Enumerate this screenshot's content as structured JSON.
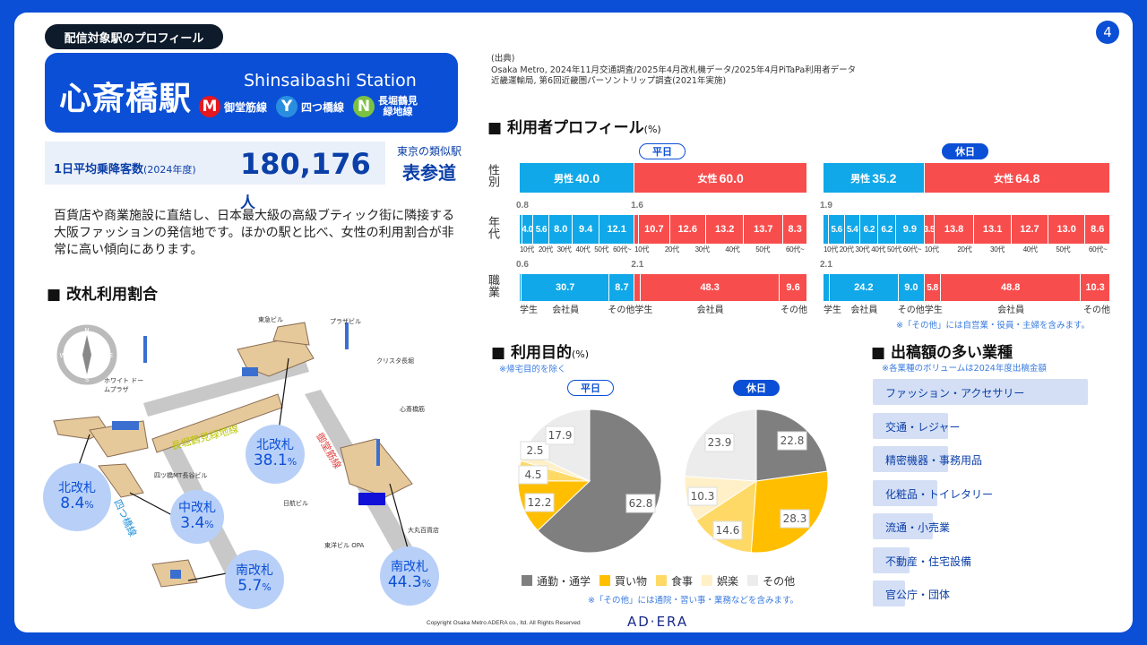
{
  "header": {
    "section_pill": "配信対象駅のプロフィール",
    "page_number": "4"
  },
  "station": {
    "name_ja": "心斎橋駅",
    "name_en": "Shinsaibashi Station",
    "lines": [
      {
        "letter": "M",
        "name": "御堂筋線",
        "color": "#e5171f"
      },
      {
        "letter": "Y",
        "name": "四つ橋線",
        "color": "#2a8ee0"
      },
      {
        "letter": "N",
        "name": "長堀鶴見緑地線",
        "color": "#7cc242"
      }
    ]
  },
  "ridership": {
    "label": "1日平均乗降客数",
    "year": "(2024年度)",
    "value": "180,176",
    "unit": "人"
  },
  "similar": {
    "label": "東京の類似駅",
    "station": "表参道"
  },
  "description": "百貨店や商業施設に直結し、日本最大級の高級ブティック街に隣接する大阪ファッションの発信地です。ほかの駅と比べ、女性の利用割合が非常に高い傾向にあります。",
  "gate_section": {
    "title": "改札利用割合",
    "gates": [
      {
        "name": "北改札",
        "value": "8.4",
        "unit": "%"
      },
      {
        "name": "中改札",
        "value": "3.4",
        "unit": "%"
      },
      {
        "name": "南改札",
        "value": "5.7",
        "unit": "%"
      },
      {
        "name": "北改札",
        "value": "38.1",
        "unit": "%"
      },
      {
        "name": "南改札",
        "value": "44.3",
        "unit": "%"
      }
    ],
    "map_labels": [
      "東急ビル",
      "プラザビル",
      "クリスタ長堀",
      "心斎橋筋",
      "ホワイト ドームプラザ",
      "四ツ橋MT長谷ビル",
      "日航ビル",
      "東洋ビル OPA",
      "大丸百貨店",
      "長堀鶴見緑地線",
      "御堂筋線",
      "四つ橋線"
    ],
    "compass": [
      "N",
      "E",
      "S",
      "W"
    ]
  },
  "source": {
    "title": "(出典)",
    "lines": [
      "Osaka Metro, 2024年11月交通調査/2025年4月改札機データ/2025年4月PiTaPa利用者データ",
      "近畿運輸局, 第6回近畿圏パーソントリップ調査(2021年実施)"
    ]
  },
  "profile": {
    "title": "利用者プロフィール",
    "unit": "(%)",
    "weekday_tag": "平日",
    "holiday_tag": "休日",
    "row_labels": {
      "gender": "性別",
      "age": "年代",
      "job": "職業"
    },
    "note": "※「その他」には自営業・役員・主婦を含みます。",
    "colors": {
      "male": "#10a8e8",
      "female": "#f84d4d"
    },
    "weekday": {
      "gender": [
        {
          "label": "男性",
          "value": 40.0,
          "sex": "male"
        },
        {
          "label": "女性",
          "value": 60.0,
          "sex": "female"
        }
      ],
      "age": [
        {
          "label": "10代",
          "value": 0.8,
          "sex": "male"
        },
        {
          "label": "20代",
          "value": 4.0,
          "sex": "male"
        },
        {
          "label": "30代",
          "value": 5.6,
          "sex": "male"
        },
        {
          "label": "40代",
          "value": 8.0,
          "sex": "male"
        },
        {
          "label": "50代",
          "value": 9.4,
          "sex": "male"
        },
        {
          "label": "60代~",
          "value": 12.1,
          "sex": "male"
        },
        {
          "label": "10代",
          "value": 1.6,
          "sex": "female"
        },
        {
          "label": "20代",
          "value": 10.7,
          "sex": "female"
        },
        {
          "label": "30代",
          "value": 12.6,
          "sex": "female"
        },
        {
          "label": "40代",
          "value": 13.2,
          "sex": "female"
        },
        {
          "label": "50代",
          "value": 13.7,
          "sex": "female"
        },
        {
          "label": "60代~",
          "value": 8.3,
          "sex": "female"
        }
      ],
      "job": [
        {
          "label": "学生",
          "value": 0.6,
          "sex": "male"
        },
        {
          "label": "会社員",
          "value": 30.7,
          "sex": "male"
        },
        {
          "label": "その他",
          "value": 8.7,
          "sex": "male"
        },
        {
          "label": "学生",
          "value": 2.1,
          "sex": "female"
        },
        {
          "label": "会社員",
          "value": 48.3,
          "sex": "female"
        },
        {
          "label": "その他",
          "value": 9.6,
          "sex": "female"
        }
      ]
    },
    "holiday": {
      "gender": [
        {
          "label": "男性",
          "value": 35.2,
          "sex": "male"
        },
        {
          "label": "女性",
          "value": 64.8,
          "sex": "female"
        }
      ],
      "age": [
        {
          "label": "10代",
          "value": 1.9,
          "sex": "male"
        },
        {
          "label": "20代",
          "value": 5.6,
          "sex": "male"
        },
        {
          "label": "30代",
          "value": 5.4,
          "sex": "male"
        },
        {
          "label": "40代",
          "value": 6.2,
          "sex": "male"
        },
        {
          "label": "50代",
          "value": 6.2,
          "sex": "male"
        },
        {
          "label": "60代~",
          "value": 9.9,
          "sex": "male"
        },
        {
          "label": "10代",
          "value": 3.5,
          "sex": "female"
        },
        {
          "label": "20代",
          "value": 13.8,
          "sex": "female"
        },
        {
          "label": "30代",
          "value": 13.1,
          "sex": "female"
        },
        {
          "label": "40代",
          "value": 12.7,
          "sex": "female"
        },
        {
          "label": "50代",
          "value": 13.0,
          "sex": "female"
        },
        {
          "label": "60代~",
          "value": 8.6,
          "sex": "female"
        }
      ],
      "job": [
        {
          "label": "学生",
          "value": 2.1,
          "sex": "male"
        },
        {
          "label": "会社員",
          "value": 24.2,
          "sex": "male"
        },
        {
          "label": "その他",
          "value": 9.0,
          "sex": "male"
        },
        {
          "label": "学生",
          "value": 5.8,
          "sex": "female"
        },
        {
          "label": "会社員",
          "value": 48.8,
          "sex": "female"
        },
        {
          "label": "その他",
          "value": 10.3,
          "sex": "female"
        }
      ]
    }
  },
  "purpose": {
    "title": "利用目的",
    "unit": "(%)",
    "subnote": "※帰宅目的を除く",
    "weekday_tag": "平日",
    "holiday_tag": "休日",
    "note": "※「その他」には通院・習い事・業務などを含みます。",
    "categories": [
      {
        "name": "通勤・通学",
        "color": "#7f7f7f"
      },
      {
        "name": "買い物",
        "color": "#ffbf00"
      },
      {
        "name": "食事",
        "color": "#ffd966"
      },
      {
        "name": "娯楽",
        "color": "#fff0c8"
      },
      {
        "name": "その他",
        "color": "#ececec"
      }
    ],
    "weekday": [
      62.8,
      12.2,
      4.5,
      2.5,
      17.9
    ],
    "holiday": [
      22.8,
      28.3,
      14.6,
      10.3,
      23.9
    ]
  },
  "industries": {
    "title": "出稿額の多い業種",
    "note": "※各業種のボリュームは2024年度出稿金額",
    "items": [
      {
        "name": "ファッション・アクセサリー",
        "volume": 100
      },
      {
        "name": "交通・レジャー",
        "volume": 35
      },
      {
        "name": "精密機器・事務用品",
        "volume": 35
      },
      {
        "name": "化粧品・トイレタリー",
        "volume": 30
      },
      {
        "name": "流通・小売業",
        "volume": 28
      },
      {
        "name": "不動産・住宅設備",
        "volume": 17
      },
      {
        "name": "官公庁・団体",
        "volume": 15
      }
    ]
  },
  "footer": {
    "copyright": "Copyright Osaka Metro ADERA co.,  ltd. All Rights Reserved",
    "logo": "AD·ERA"
  }
}
